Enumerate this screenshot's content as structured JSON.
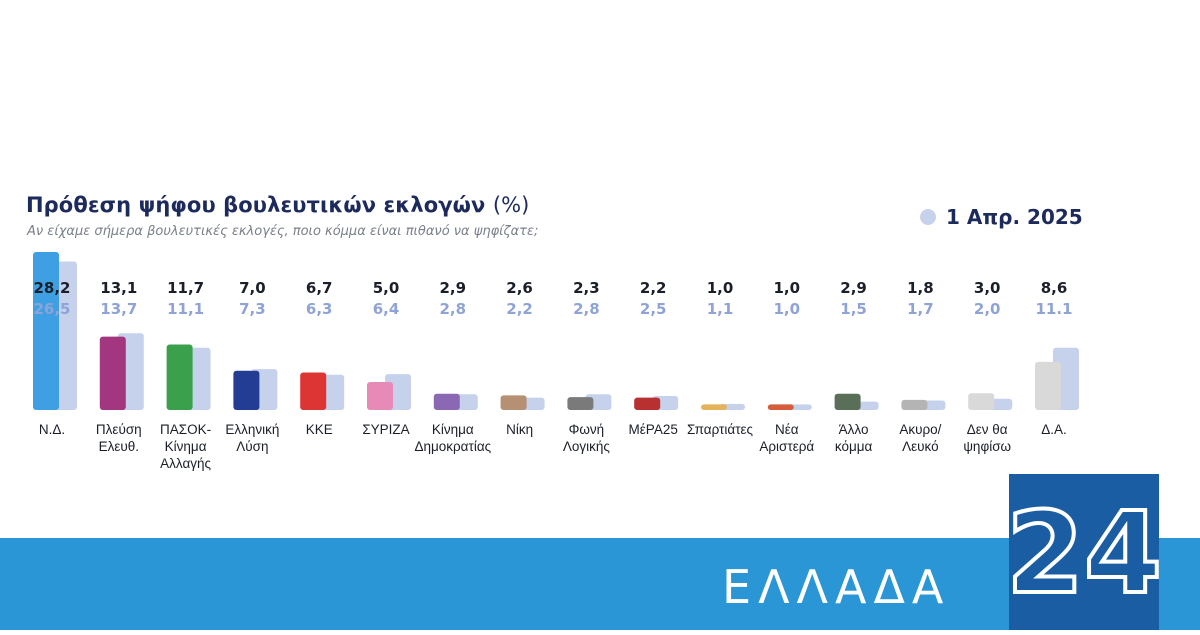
{
  "chart_data": {
    "type": "bar",
    "title": "Πρόθεση ψήφου βουλευτικών εκλογών",
    "title_unit": "(%)",
    "subtitle": "Αν είχαμε σήμερα βουλευτικές εκλογές, ποιο κόμμα είναι πιθανό να ψηφίζατε;",
    "legend": [
      {
        "name": "1 Απρ. 2025",
        "color": "#c6d2ec"
      }
    ],
    "legend_position": "top-right",
    "grid": false,
    "categories": [
      [
        "Ν.Δ."
      ],
      [
        "Πλεύση",
        "Ελευθ."
      ],
      [
        "ΠΑΣΟΚ-",
        "Κίνημα",
        "Αλλαγής"
      ],
      [
        "Ελληνική",
        "Λύση"
      ],
      [
        "ΚΚΕ"
      ],
      [
        "ΣΥΡΙΖΑ"
      ],
      [
        "Κίνημα",
        "Δημοκρατίας"
      ],
      [
        "Νίκη"
      ],
      [
        "Φωνή",
        "Λογικής"
      ],
      [
        "ΜέΡΑ25"
      ],
      [
        "Σπαρτιάτες"
      ],
      [
        "Νέα",
        "Αριστερά"
      ],
      [
        "Άλλο",
        "κόμμα"
      ],
      [
        "Ακυρο/",
        "Λευκό"
      ],
      [
        "Δεν θα",
        "ψηφίσω"
      ],
      [
        "Δ.Α."
      ]
    ],
    "series": [
      {
        "values": [
          28.2,
          13.1,
          11.7,
          7.0,
          6.7,
          5.0,
          2.9,
          2.6,
          2.3,
          2.2,
          1.0,
          1.0,
          2.9,
          1.8,
          3.0,
          8.6
        ],
        "labels": [
          "28,2",
          "13,1",
          "11,7",
          "7,0",
          "6,7",
          "5,0",
          "2,9",
          "2,6",
          "2,3",
          "2,2",
          "1,0",
          "1,0",
          "2,9",
          "1,8",
          "3,0",
          "8,6"
        ],
        "colors": [
          "#3ea0e3",
          "#a3377f",
          "#3aa04b",
          "#233c94",
          "#dd3434",
          "#e88ab8",
          "#8a68b3",
          "#b69072",
          "#7a7a7a",
          "#b8302f",
          "#e4b25a",
          "#d55d3b",
          "#5a6f58",
          "#b4b4b4",
          "#d9d9d9",
          "#d9d9d9"
        ]
      },
      {
        "name": "1 Απρ. 2025",
        "values": [
          26.5,
          13.7,
          11.1,
          7.3,
          6.3,
          6.4,
          2.8,
          2.2,
          2.8,
          2.5,
          1.1,
          1.0,
          1.5,
          1.7,
          2.0,
          11.1
        ],
        "labels": [
          "26,5",
          "13,7",
          "11,1",
          "7,3",
          "6,3",
          "6,4",
          "2,8",
          "2,2",
          "2,8",
          "2,5",
          "1,1",
          "1,0",
          "1,5",
          "1,7",
          "2,0",
          "11.1"
        ],
        "color": "#c6d2ec"
      }
    ],
    "ylim": [
      0,
      28.2
    ]
  },
  "brand": {
    "band_text": "ΕΛΛΑΔΑ",
    "logo_text": "24",
    "band_color": "#2a96d6",
    "logo_color": "#1a5da3"
  }
}
